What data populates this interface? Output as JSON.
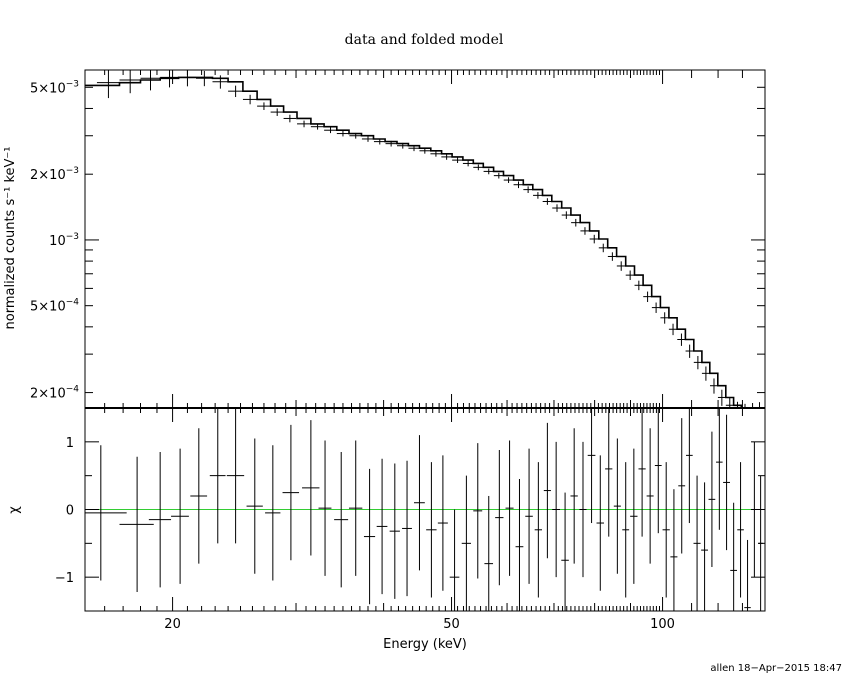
{
  "chart_data": [
    {
      "type": "scatter",
      "title": "data and folded model",
      "xlabel": "Energy (keV)",
      "ylabel": "normalized counts s⁻¹ keV⁻¹",
      "xscale": "log",
      "yscale": "log",
      "xlim": [
        15,
        140
      ],
      "ylim": [
        0.00017,
        0.006
      ],
      "xticks": [
        {
          "value": 20,
          "label": "20"
        },
        {
          "value": 50,
          "label": "50"
        },
        {
          "value": 100,
          "label": "100"
        }
      ],
      "yticks": [
        {
          "value": 0.005,
          "mant": "5",
          "exp": "−3"
        },
        {
          "value": 0.002,
          "mant": "2",
          "exp": "−3"
        },
        {
          "value": 0.001,
          "mant": "",
          "exp": "−3"
        },
        {
          "value": 0.0005,
          "mant": "5",
          "exp": "−4"
        },
        {
          "value": 0.0002,
          "mant": "2",
          "exp": "−4"
        }
      ],
      "grid": false,
      "legend": "none",
      "series": [
        {
          "kind": "data_with_errors",
          "x": [
            15.0,
            16.2,
            17.4,
            18.6,
            19.8,
            21.0,
            22.2,
            23.4,
            24.6,
            25.8,
            27.0,
            28.2,
            29.4,
            30.8,
            32.2,
            33.6,
            35.0,
            36.5,
            38.0,
            39.5,
            41.0,
            42.6,
            44.2,
            45.8,
            47.5,
            49.2,
            51.0,
            52.8,
            54.6,
            56.5,
            58.4,
            60.3,
            62.3,
            64.3,
            66.4,
            68.5,
            70.7,
            72.9,
            75.2,
            77.5,
            79.9,
            82.3,
            84.8,
            87.3,
            89.9,
            92.5,
            95.2,
            97.9,
            100.7,
            103.5,
            106.4,
            109.3,
            112.3,
            115.3,
            118.4,
            121.5,
            124.7,
            127.9,
            131.1,
            134.4,
            137.5
          ],
          "y": [
            0.0051,
            0.00525,
            0.0054,
            0.0055,
            0.00555,
            0.00555,
            0.0055,
            0.0053,
            0.0048,
            0.0044,
            0.0041,
            0.00385,
            0.0036,
            0.0034,
            0.0033,
            0.00318,
            0.00307,
            0.003,
            0.0029,
            0.00282,
            0.00276,
            0.0027,
            0.00263,
            0.00256,
            0.00248,
            0.0024,
            0.00232,
            0.00224,
            0.00215,
            0.00206,
            0.00197,
            0.00188,
            0.00179,
            0.0017,
            0.0016,
            0.0015,
            0.0014,
            0.0013,
            0.0012,
            0.0011,
            0.00101,
            0.00092,
            0.00084,
            0.00076,
            0.00069,
            0.00062,
            0.00055,
            0.00049,
            0.00044,
            0.00039,
            0.00035,
            0.00031,
            0.000275,
            0.000245,
            0.000215,
            0.00019,
            0.000175,
            0.000165,
            0.00016,
            0.00016,
            0.00016
          ],
          "xerr": [
            0.6,
            0.6,
            0.6,
            0.6,
            0.6,
            0.6,
            0.6,
            0.6,
            0.6,
            0.6,
            0.6,
            0.6,
            0.6,
            0.7,
            0.7,
            0.7,
            0.7,
            0.75,
            0.75,
            0.75,
            0.75,
            0.8,
            0.8,
            0.8,
            0.85,
            0.85,
            0.9,
            0.9,
            0.9,
            0.95,
            0.95,
            0.95,
            1.0,
            1.0,
            1.05,
            1.05,
            1.1,
            1.1,
            1.15,
            1.15,
            1.2,
            1.2,
            1.25,
            1.25,
            1.3,
            1.3,
            1.35,
            1.35,
            1.4,
            1.4,
            1.45,
            1.45,
            1.5,
            1.5,
            1.55,
            1.55,
            1.6,
            1.6,
            1.6,
            1.65,
            1.65
          ],
          "yerr_frac": [
            0.15,
            0.15,
            0.13,
            0.12,
            0.1,
            0.09,
            0.08,
            0.07,
            0.06,
            0.05,
            0.04,
            0.04,
            0.04,
            0.035,
            0.03,
            0.03,
            0.03,
            0.03,
            0.03,
            0.03,
            0.03,
            0.03,
            0.03,
            0.03,
            0.03,
            0.03,
            0.03,
            0.03,
            0.03,
            0.03,
            0.03,
            0.03,
            0.035,
            0.035,
            0.035,
            0.035,
            0.04,
            0.04,
            0.04,
            0.04,
            0.045,
            0.045,
            0.045,
            0.05,
            0.05,
            0.05,
            0.055,
            0.055,
            0.06,
            0.06,
            0.065,
            0.07,
            0.07,
            0.075,
            0.08,
            0.085,
            0.09,
            0.1,
            0.11,
            0.12,
            0.13
          ]
        },
        {
          "kind": "model_histogram",
          "edges": [
            14.4,
            16.8,
            18.0,
            19.2,
            20.4,
            21.6,
            22.8,
            24.0,
            25.2,
            26.4,
            27.6,
            28.8,
            30.1,
            31.5,
            32.9,
            34.3,
            35.7,
            37.2,
            38.7,
            40.2,
            41.8,
            43.4,
            45.0,
            46.7,
            48.4,
            50.1,
            51.9,
            53.7,
            55.5,
            57.4,
            59.3,
            61.3,
            63.3,
            65.3,
            67.4,
            69.5,
            71.8,
            74.0,
            76.3,
            78.7,
            81.1,
            83.5,
            86.0,
            88.6,
            91.2,
            93.8,
            96.5,
            99.3,
            102.1,
            104.9,
            107.8,
            110.8,
            113.8,
            116.8,
            119.9,
            123.1,
            126.3,
            129.5,
            132.8,
            136.0,
            139.0
          ],
          "values": [
            0.0051,
            0.00525,
            0.0054,
            0.0055,
            0.00555,
            0.00555,
            0.0055,
            0.0053,
            0.0048,
            0.0044,
            0.0041,
            0.00385,
            0.0036,
            0.0034,
            0.0033,
            0.00318,
            0.00307,
            0.003,
            0.0029,
            0.00282,
            0.00276,
            0.0027,
            0.00263,
            0.00256,
            0.00248,
            0.0024,
            0.00232,
            0.00224,
            0.00215,
            0.00206,
            0.00197,
            0.00188,
            0.00179,
            0.0017,
            0.0016,
            0.0015,
            0.0014,
            0.0013,
            0.0012,
            0.0011,
            0.00101,
            0.00092,
            0.00084,
            0.00076,
            0.00069,
            0.00062,
            0.00055,
            0.00049,
            0.00044,
            0.00039,
            0.00035,
            0.00031,
            0.000275,
            0.000245,
            0.000215,
            0.00019,
            0.000175,
            0.000165,
            0.00016,
            0.00016
          ]
        }
      ]
    },
    {
      "type": "scatter",
      "xlabel": "Energy (keV)",
      "ylabel": "χ",
      "xscale": "log",
      "xlim": [
        15,
        140
      ],
      "ylim": [
        -1.5,
        1.5
      ],
      "yticks": [
        {
          "value": 1,
          "label": "1"
        },
        {
          "value": 0,
          "label": "0"
        },
        {
          "value": -1,
          "label": "−1"
        }
      ],
      "reference_line": {
        "y": 0,
        "color": "#33cc33"
      },
      "grid": false,
      "series": [
        {
          "kind": "residuals",
          "x": [
            15.8,
            17.8,
            19.2,
            20.5,
            21.8,
            23.2,
            24.6,
            26.2,
            27.8,
            29.5,
            31.5,
            33.0,
            34.8,
            36.5,
            38.2,
            39.8,
            41.5,
            43.2,
            45.0,
            46.8,
            48.6,
            50.5,
            52.5,
            54.5,
            56.5,
            58.5,
            60.5,
            62.5,
            64.5,
            66.5,
            68.5,
            70.5,
            72.6,
            74.8,
            77.0,
            79.2,
            81.5,
            83.8,
            86.2,
            88.6,
            91.0,
            93.5,
            96.0,
            98.6,
            101.2,
            103.8,
            106.5,
            109.2,
            112.0,
            114.8,
            117.6,
            120.5,
            123.4,
            126.3,
            129.2,
            132.2,
            135.2,
            138.0
          ],
          "y": [
            -0.05,
            -0.22,
            -0.15,
            -0.1,
            0.2,
            0.5,
            0.5,
            0.05,
            -0.05,
            0.25,
            0.32,
            0.02,
            -0.15,
            0.02,
            -0.4,
            -0.25,
            -0.32,
            -0.28,
            0.1,
            -0.3,
            -0.2,
            -1.0,
            -0.5,
            -0.02,
            -0.8,
            -0.12,
            0.02,
            -0.55,
            -0.1,
            -0.3,
            0.28,
            0.0,
            -0.75,
            0.2,
            0.0,
            0.8,
            -0.2,
            0.6,
            0.05,
            -0.3,
            -0.1,
            0.6,
            0.2,
            0.65,
            -0.3,
            -0.7,
            0.35,
            0.8,
            -0.5,
            -0.6,
            0.15,
            0.7,
            0.4,
            -0.9,
            -0.3,
            -1.45,
            0.0,
            -0.5
          ],
          "xerr": [
            1.4,
            1.0,
            0.7,
            0.6,
            0.6,
            0.6,
            0.7,
            0.7,
            0.7,
            0.8,
            0.9,
            0.7,
            0.8,
            0.8,
            0.7,
            0.7,
            0.7,
            0.7,
            0.8,
            0.8,
            0.8,
            0.8,
            0.8,
            0.8,
            0.8,
            0.8,
            0.8,
            0.8,
            0.8,
            0.8,
            0.8,
            0.9,
            0.9,
            0.9,
            0.9,
            1.0,
            1.0,
            1.0,
            1.0,
            1.0,
            1.1,
            1.1,
            1.1,
            1.1,
            1.2,
            1.2,
            1.2,
            1.2,
            1.3,
            1.3,
            1.3,
            1.3,
            1.4,
            1.4,
            1.4,
            1.4,
            1.5,
            1.0
          ],
          "yerr": [
            1.0,
            1.0,
            1.0,
            1.0,
            1.0,
            1.0,
            1.0,
            1.0,
            1.0,
            1.0,
            1.0,
            1.0,
            1.0,
            1.0,
            1.0,
            1.0,
            1.0,
            1.0,
            1.0,
            1.0,
            1.0,
            1.0,
            1.0,
            1.0,
            1.0,
            1.0,
            1.0,
            1.0,
            1.0,
            1.0,
            1.0,
            1.0,
            1.0,
            1.0,
            1.0,
            1.0,
            1.0,
            1.0,
            1.0,
            1.0,
            1.0,
            1.0,
            1.0,
            1.0,
            1.0,
            1.0,
            1.0,
            1.0,
            1.0,
            1.0,
            1.0,
            1.0,
            1.0,
            1.0,
            1.0,
            1.0,
            1.0,
            1.0
          ]
        }
      ]
    }
  ],
  "footer": "allen 18−Apr−2015 18:47"
}
